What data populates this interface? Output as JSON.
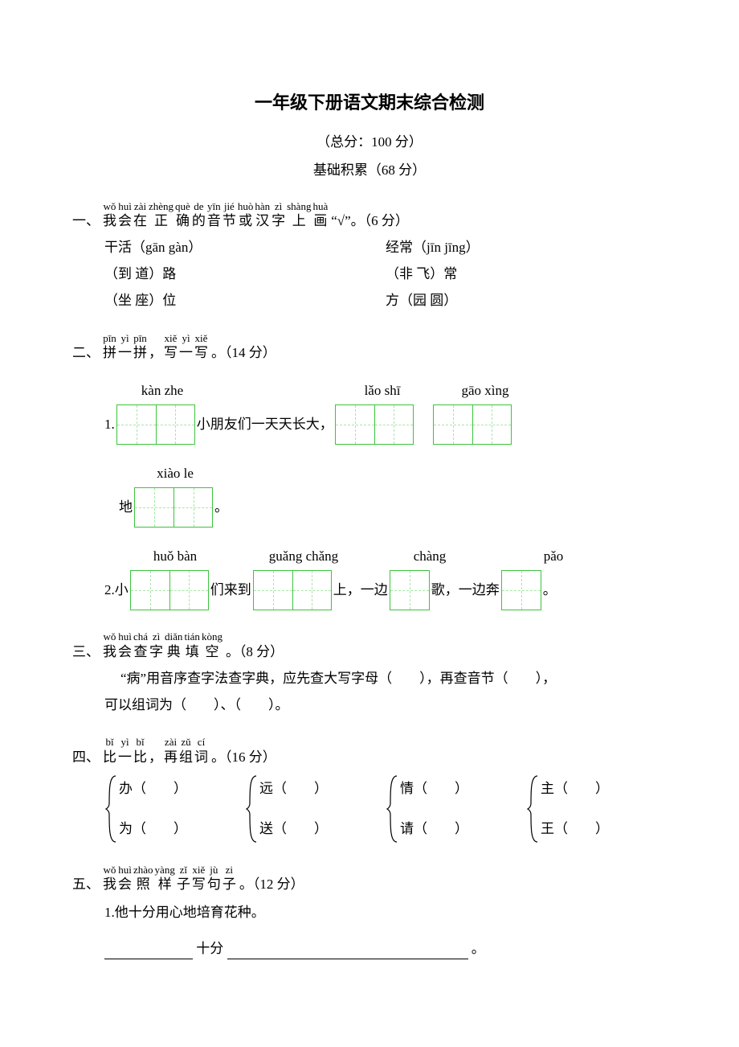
{
  "colors": {
    "text": "#000000",
    "background": "#ffffff",
    "grid_border": "#3cc43c",
    "grid_dash": "#a8e6a8"
  },
  "typography": {
    "body_font": "SimSun",
    "pinyin_font": "Times New Roman",
    "title_fontsize": 22,
    "body_fontsize": 17,
    "pinyin_small_fontsize": 13
  },
  "title": "一年级下册语文期末综合检测",
  "subtitle": "（总分：100 分）",
  "section_label": "基础积累（68 分）",
  "q1": {
    "prefix": "一、",
    "ruby": [
      {
        "py": "wǒ",
        "ch": "我"
      },
      {
        "py": "huì",
        "ch": "会"
      },
      {
        "py": "zài",
        "ch": "在"
      },
      {
        "py": "zhèng",
        "ch": "正"
      },
      {
        "py": "què",
        "ch": "确"
      },
      {
        "py": "de",
        "ch": "的"
      },
      {
        "py": "yīn",
        "ch": "音"
      },
      {
        "py": "jié",
        "ch": "节"
      },
      {
        "py": "huò",
        "ch": "或"
      },
      {
        "py": "hàn",
        "ch": "汉"
      },
      {
        "py": "zì",
        "ch": "字"
      },
      {
        "py": "shàng",
        "ch": "上"
      },
      {
        "py": "huà",
        "ch": "画"
      }
    ],
    "suffix": "“√”。（6 分）",
    "rows": [
      {
        "left": "干活（gān  gàn）",
        "right": "经常（jīn  jīng）"
      },
      {
        "left": "（到  道）路",
        "right": "（非  飞）常"
      },
      {
        "left": "（坐  座）位",
        "right": "方（园  圆）"
      }
    ]
  },
  "q2": {
    "prefix": "二、",
    "ruby": [
      {
        "py": "pīn",
        "ch": "拼"
      },
      {
        "py": "yì",
        "ch": "一"
      },
      {
        "py": "pīn",
        "ch": "拼"
      },
      {
        "py": "",
        "ch": "，"
      },
      {
        "py": "xiě",
        "ch": "写"
      },
      {
        "py": "yì",
        "ch": "一"
      },
      {
        "py": "xiě",
        "ch": "写"
      }
    ],
    "suffix": "。（14 分）",
    "line1": {
      "lead_num": "1.",
      "groups": [
        {
          "pinyin": "kàn  zhe",
          "cells": 2
        },
        {
          "text": "小朋友们一天天长大，"
        },
        {
          "pinyin": "lǎo  shī",
          "cells": 2
        },
        {
          "pinyin": "gāo  xìng",
          "cells": 2
        }
      ],
      "line1b": {
        "lead": "地",
        "pinyin": "xiào  le",
        "cells": 2,
        "tail": "。"
      }
    },
    "line2": {
      "lead_num": "2.",
      "lead_text": "小",
      "groups": [
        {
          "pinyin": "huǒ  bàn",
          "cells": 2,
          "after": "们来到"
        },
        {
          "pinyin": "guǎng chǎng",
          "cells": 2,
          "after": "上，一边"
        },
        {
          "pinyin": "chàng",
          "cells": 1,
          "after": "歌，一边奔"
        },
        {
          "pinyin": "pǎo",
          "cells": 1,
          "after": "。"
        }
      ]
    }
  },
  "q3": {
    "prefix": "三、",
    "ruby": [
      {
        "py": "wǒ",
        "ch": "我"
      },
      {
        "py": "huì",
        "ch": "会"
      },
      {
        "py": "chá",
        "ch": "查"
      },
      {
        "py": "zì",
        "ch": "字"
      },
      {
        "py": "diǎn",
        "ch": "典"
      },
      {
        "py": "tián",
        "ch": "填"
      },
      {
        "py": "kòng",
        "ch": "空"
      }
    ],
    "suffix": "。（8 分）",
    "text1": "“病”用音序查字法查字典，应先查大写字母（　　），再查音节（　　），",
    "text2": "可以组词为（　　）、（　　）。"
  },
  "q4": {
    "prefix": "四、",
    "ruby": [
      {
        "py": "bǐ",
        "ch": "比"
      },
      {
        "py": "yì",
        "ch": "一"
      },
      {
        "py": "bǐ",
        "ch": "比"
      },
      {
        "py": "",
        "ch": "，"
      },
      {
        "py": "zài",
        "ch": "再"
      },
      {
        "py": "zǔ",
        "ch": "组"
      },
      {
        "py": "cí",
        "ch": "词"
      }
    ],
    "suffix": "。（16 分）",
    "pairs": [
      {
        "top": "办（　　）",
        "bottom": "为（　　）"
      },
      {
        "top": "远（　　）",
        "bottom": "送（　　）"
      },
      {
        "top": "情（　　）",
        "bottom": "请（　　）"
      },
      {
        "top": "主（　　）",
        "bottom": "王（　　）"
      }
    ]
  },
  "q5": {
    "prefix": "五、",
    "ruby": [
      {
        "py": "wǒ",
        "ch": "我"
      },
      {
        "py": "huì",
        "ch": "会"
      },
      {
        "py": "zhào",
        "ch": "照"
      },
      {
        "py": "yàng",
        "ch": "样"
      },
      {
        "py": "zǐ",
        "ch": "子"
      },
      {
        "py": "xiě",
        "ch": "写"
      },
      {
        "py": "jù",
        "ch": "句"
      },
      {
        "py": "zi",
        "ch": "子"
      }
    ],
    "suffix": "。（12 分）",
    "item1": "1.他十分用心地培育花种。",
    "blank_mid": "十分",
    "blank_tail": "。",
    "uline1_width": 110,
    "uline2_width": 300
  }
}
